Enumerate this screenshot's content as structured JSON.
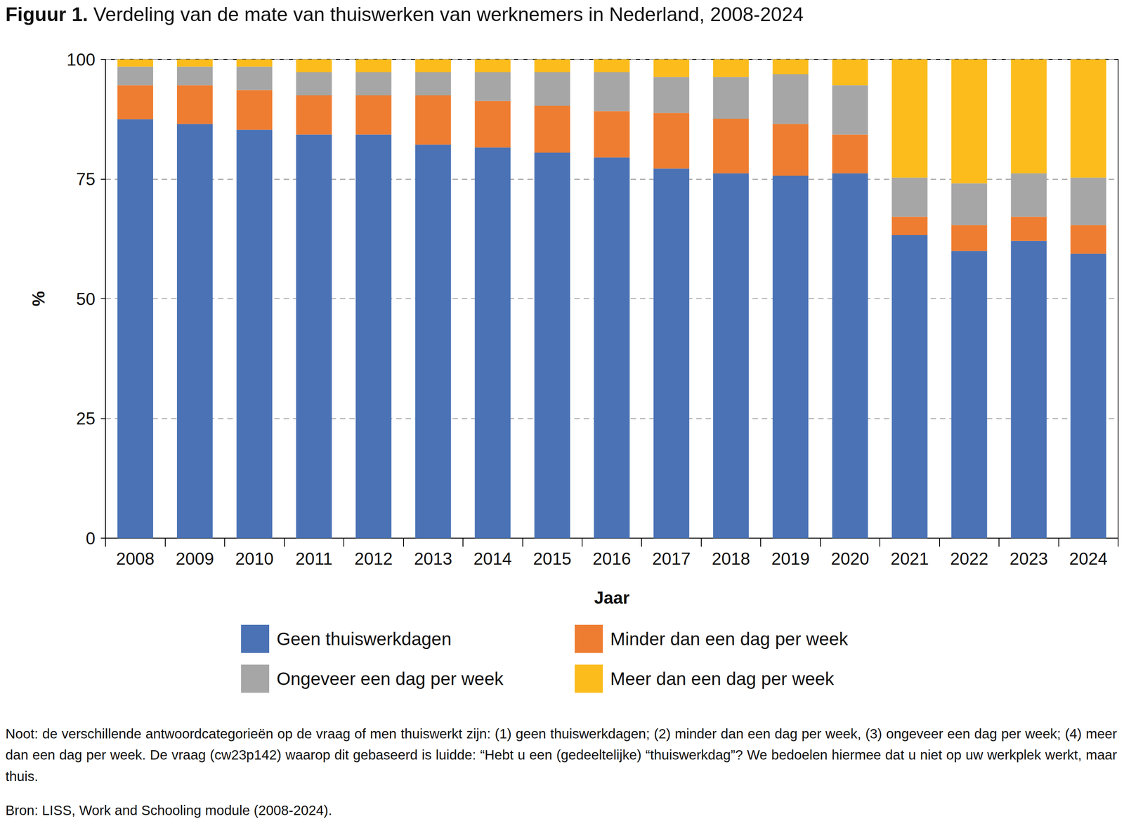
{
  "chart_data": {
    "type": "bar",
    "title": "Figuur 1. Verdeling van de mate van thuiswerken van werknemers in Nederland, 2008-2024",
    "x_label": "Jaar",
    "y_label": "%",
    "categories": [
      "2008",
      "2009",
      "2010",
      "2011",
      "2012",
      "2013",
      "2014",
      "2015",
      "2016",
      "2017",
      "2018",
      "2019",
      "2020",
      "2021",
      "2022",
      "2023",
      "2024"
    ],
    "series": [
      {
        "name": "Geen thuiswerkdagen",
        "color": "#4a72b5",
        "values": [
          87.5,
          86.5,
          85.3,
          84.3,
          84.3,
          82.2,
          81.6,
          80.5,
          79.5,
          77.2,
          76.2,
          75.7,
          76.2,
          63.3,
          60.0,
          62.1,
          59.4
        ]
      },
      {
        "name": "Minder dan een dag per week",
        "color": "#ee7d31",
        "values": [
          7.1,
          8.1,
          8.3,
          8.2,
          8.2,
          10.3,
          9.7,
          9.8,
          9.7,
          11.6,
          11.4,
          10.8,
          8.1,
          3.8,
          5.4,
          5.0,
          6.0
        ]
      },
      {
        "name": "Ongeveer een dag per week",
        "color": "#a6a6a6",
        "values": [
          3.9,
          3.9,
          4.9,
          4.8,
          4.8,
          4.8,
          6.0,
          7.0,
          8.1,
          7.5,
          8.7,
          10.4,
          10.3,
          8.2,
          8.7,
          9.1,
          9.9
        ]
      },
      {
        "name": "Meer dan een dag per week",
        "color": "#fbbc1c",
        "values": [
          1.5,
          1.5,
          1.5,
          2.7,
          2.7,
          2.7,
          2.7,
          2.7,
          2.7,
          3.7,
          3.7,
          3.1,
          5.4,
          24.7,
          25.9,
          23.8,
          24.7
        ]
      }
    ],
    "ylim": [
      0,
      100
    ],
    "yticks": [
      0,
      25,
      50,
      75,
      100
    ],
    "grid": true,
    "stacked": true,
    "legend": "bottom",
    "note": "Noot: de verschillende antwoordcategorieën op de vraag of men thuiswerkt zijn: (1) geen thuiswerkdagen; (2) minder dan een dag per week, (3) ongeveer een dag per week; (4) meer dan een dag per week. De vraag (cw23p142) waarop dit gebaseerd is luidde: “Hebt u een (gedeeltelijke) “thuiswerkdag”? We bedoelen hiermee dat u niet op uw werkplek werkt, maar thuis.",
    "source": "Bron: LISS, Work and Schooling module (2008-2024)."
  }
}
